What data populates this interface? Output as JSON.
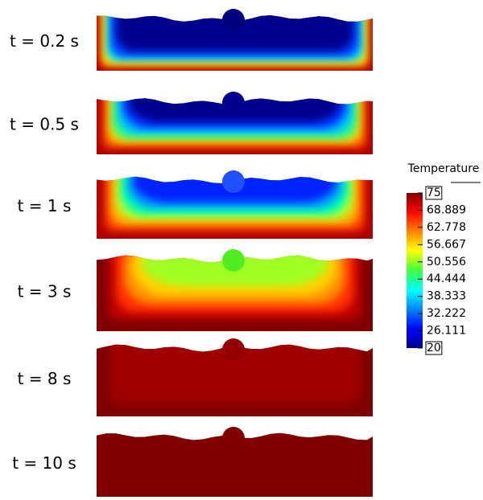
{
  "panels": [
    {
      "label": "t = 0.2 s"
    },
    {
      "label": "t = 0.5 s"
    },
    {
      "label": "t = 1 s"
    },
    {
      "label": "t = 3 s"
    },
    {
      "label": "t = 8 s"
    },
    {
      "label": "t = 10 s"
    }
  ],
  "colorbar": {
    "title": "Temperature",
    "range": [
      20,
      75
    ],
    "ticks": [
      75,
      68.889,
      62.778,
      56.667,
      50.556,
      44.444,
      38.333,
      32.222,
      26.111,
      20
    ]
  }
}
